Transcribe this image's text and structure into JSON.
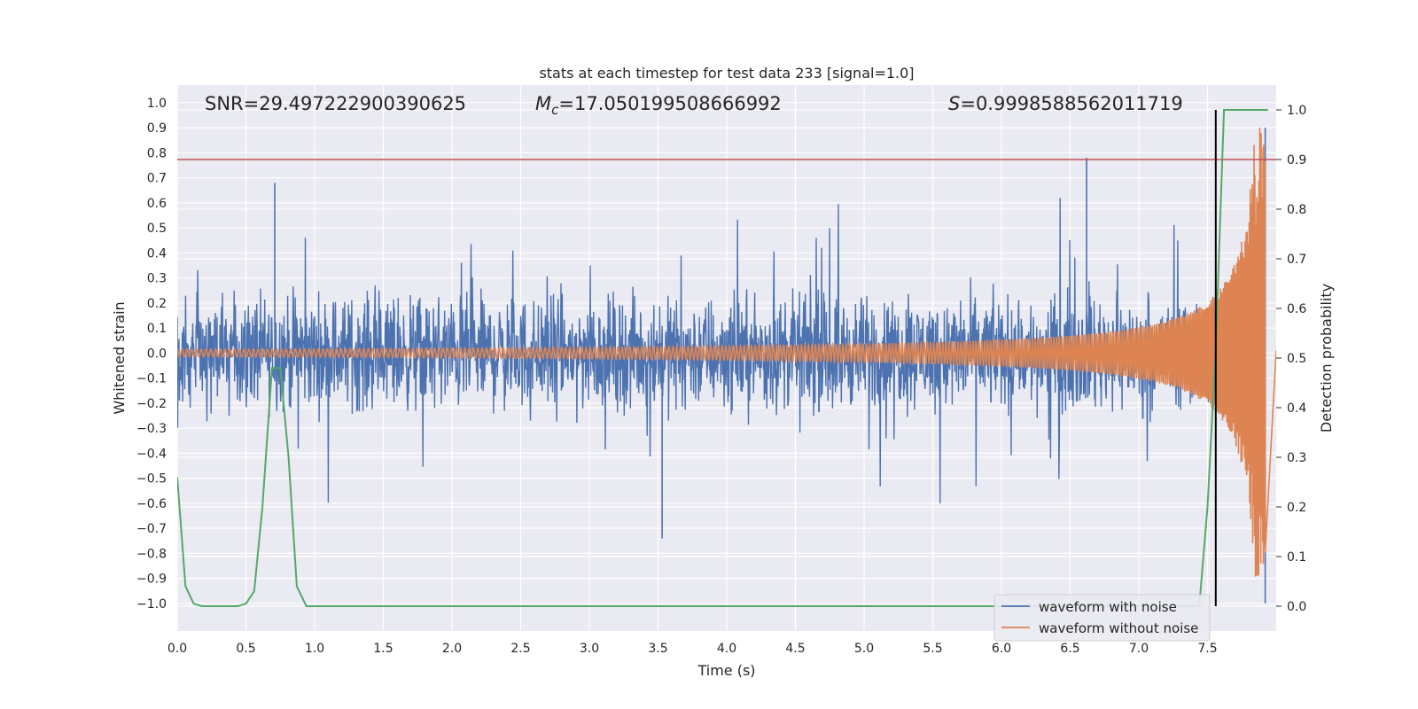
{
  "chart_data": {
    "type": "line",
    "title": "stats at each timestep for test data 233 [signal=1.0]",
    "xlabel": "Time (s)",
    "ylabel": "Whitened strain",
    "y2label": "Detection probability",
    "xlim": [
      0.0,
      8.0
    ],
    "ylim": [
      -1.11,
      1.07
    ],
    "y2lim": [
      -0.05,
      1.05
    ],
    "xticks": [
      "0.0",
      "0.5",
      "1.0",
      "1.5",
      "2.0",
      "2.5",
      "3.0",
      "3.5",
      "4.0",
      "4.5",
      "5.0",
      "5.5",
      "6.0",
      "6.5",
      "7.0",
      "7.5"
    ],
    "yticks": [
      "1.0",
      "0.9",
      "0.8",
      "0.7",
      "0.6",
      "0.5",
      "0.4",
      "0.3",
      "0.2",
      "0.1",
      "0.0",
      "-0.1",
      "-0.2",
      "-0.3",
      "-0.4",
      "-0.5",
      "-0.6",
      "-0.7",
      "-0.8",
      "-0.9",
      "-1.0"
    ],
    "y2ticks": [
      "0.0",
      "0.1",
      "0.2",
      "0.3",
      "0.4",
      "0.5",
      "0.6",
      "0.7",
      "0.8",
      "0.9",
      "1.0"
    ],
    "grid": true,
    "legend_position": "lower-right",
    "annotations": {
      "snr": "SNR=29.497222900390625",
      "mc_symbol": "M",
      "mc_sub": "c",
      "mc_value": "=17.050199508666992",
      "s_symbol": "S",
      "s_value": "=0.9998588562011719"
    },
    "threshold_line": {
      "y2": 0.9,
      "color": "#c44e52"
    },
    "vertical_marker": {
      "x": 7.56,
      "color": "#000000"
    },
    "series": [
      {
        "name": "waveform with noise",
        "color": "#4c72b0",
        "description_range": [
          0.0,
          7.92
        ],
        "envelope_typical": 0.32,
        "notable_peaks": [
          [
            0.71,
            0.68
          ],
          [
            6.62,
            0.78
          ],
          [
            3.53,
            -0.74
          ],
          [
            7.92,
            0.9
          ],
          [
            7.92,
            -1.0
          ]
        ]
      },
      {
        "name": "waveform without noise",
        "color": "#dd8452",
        "x_start": 0.0,
        "x_end": 7.92,
        "amplitude_start": 0.015,
        "amplitude_end": 0.9,
        "chirp_end": 7.93
      },
      {
        "name": "detection probability",
        "axis": "y2",
        "color": "#55a868",
        "x": [
          0.0,
          0.06,
          0.12,
          0.18,
          0.25,
          0.32,
          0.38,
          0.44,
          0.5,
          0.56,
          0.62,
          0.69,
          0.75,
          0.81,
          0.87,
          0.94,
          1.0,
          1.5,
          2.0,
          3.0,
          4.0,
          5.0,
          6.0,
          7.0,
          7.44,
          7.5,
          7.56,
          7.62,
          7.69,
          7.75,
          7.81,
          7.88,
          7.94
        ],
        "values": [
          0.26,
          0.04,
          0.005,
          0.0,
          0.0,
          0.0,
          0.0,
          0.0,
          0.005,
          0.03,
          0.2,
          0.48,
          0.48,
          0.3,
          0.04,
          0.0,
          0.0,
          0.0,
          0.0,
          0.0,
          0.0,
          0.0,
          0.0,
          0.0,
          0.0,
          0.2,
          0.52,
          1.0,
          1.0,
          1.0,
          1.0,
          1.0,
          1.0
        ]
      }
    ]
  }
}
